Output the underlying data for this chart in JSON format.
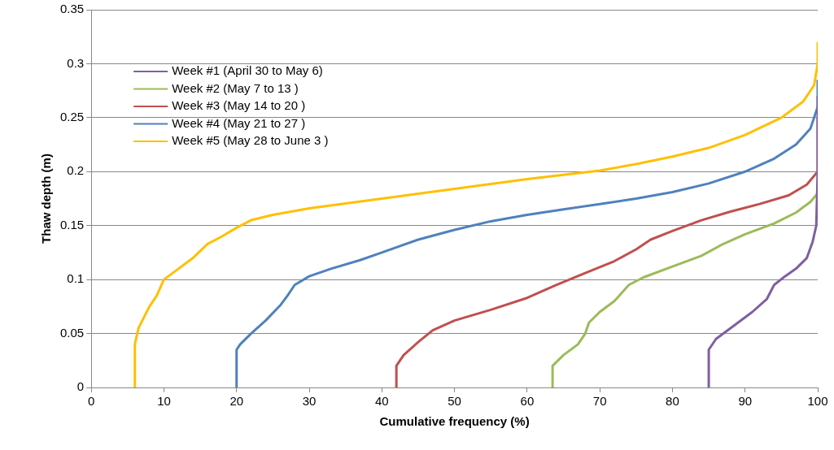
{
  "chart_data": {
    "type": "line",
    "xlabel": "Cumulative frequency (%)",
    "ylabel": "Thaw depth (m)",
    "xlim": [
      0,
      100
    ],
    "xticks": [
      0,
      10,
      20,
      30,
      40,
      50,
      60,
      70,
      80,
      90,
      100
    ],
    "ylim": [
      0,
      0.35
    ],
    "yticks": [
      0,
      0.05,
      0.1,
      0.15,
      0.2,
      0.25,
      0.3,
      0.35
    ],
    "grid": "y",
    "legend": "top left",
    "marker": "none",
    "line_style": "solid",
    "series": [
      {
        "name": "Week #1 (April 30 to May 6)",
        "color": "#7d60a0",
        "x": [
          85,
          85,
          86,
          88,
          91,
          93,
          94,
          95.5,
          97,
          98.5,
          99.3,
          99.8,
          100,
          100
        ],
        "values": [
          0,
          0.035,
          0.045,
          0.055,
          0.07,
          0.082,
          0.095,
          0.103,
          0.11,
          0.12,
          0.135,
          0.15,
          0.2,
          0.27
        ]
      },
      {
        "name": "Week #2 (May 7 to 13 )",
        "color": "#9bbb59",
        "x": [
          63.5,
          63.5,
          65,
          67,
          68,
          68.5,
          70,
          72,
          74,
          76,
          80,
          84,
          87,
          90,
          94,
          97,
          99,
          100,
          100
        ],
        "values": [
          0,
          0.02,
          0.03,
          0.04,
          0.05,
          0.06,
          0.07,
          0.08,
          0.095,
          0.102,
          0.112,
          0.122,
          0.133,
          0.142,
          0.152,
          0.162,
          0.172,
          0.18,
          0.2
        ]
      },
      {
        "name": "Week #3 (May 14 to 20 )",
        "color": "#c0504d",
        "x": [
          42,
          42,
          43,
          45,
          47,
          50,
          55,
          60,
          64,
          68,
          72,
          75,
          77,
          80,
          84,
          88,
          92,
          96,
          98.5,
          100,
          100
        ],
        "values": [
          0,
          0.02,
          0.03,
          0.042,
          0.053,
          0.062,
          0.072,
          0.083,
          0.095,
          0.106,
          0.117,
          0.128,
          0.137,
          0.145,
          0.155,
          0.163,
          0.17,
          0.178,
          0.188,
          0.2,
          0.25
        ]
      },
      {
        "name": "Week #4 (May 21 to 27 )",
        "color": "#4f81bd",
        "x": [
          20,
          20,
          20.5,
          22,
          24,
          26,
          27,
          28,
          30,
          33,
          37,
          40,
          45,
          50,
          55,
          60,
          65,
          70,
          75,
          80,
          85,
          90,
          94,
          97,
          99,
          100,
          100
        ],
        "values": [
          0,
          0.035,
          0.04,
          0.05,
          0.062,
          0.076,
          0.085,
          0.095,
          0.103,
          0.11,
          0.118,
          0.125,
          0.137,
          0.146,
          0.154,
          0.16,
          0.165,
          0.17,
          0.175,
          0.181,
          0.189,
          0.2,
          0.212,
          0.225,
          0.24,
          0.26,
          0.285
        ]
      },
      {
        "name": "Week #5 (May 28 to June 3 )",
        "color": "#ffc000",
        "x": [
          6,
          6,
          6.5,
          8,
          9,
          10,
          12,
          14,
          16,
          18,
          20,
          22,
          25,
          30,
          40,
          50,
          60,
          65,
          70,
          75,
          80,
          85,
          90,
          95,
          98,
          99.5,
          100,
          100
        ],
        "values": [
          0,
          0.04,
          0.055,
          0.075,
          0.085,
          0.1,
          0.11,
          0.12,
          0.133,
          0.14,
          0.148,
          0.155,
          0.16,
          0.166,
          0.175,
          0.184,
          0.193,
          0.197,
          0.201,
          0.207,
          0.214,
          0.222,
          0.234,
          0.25,
          0.265,
          0.28,
          0.3,
          0.32
        ]
      }
    ]
  }
}
